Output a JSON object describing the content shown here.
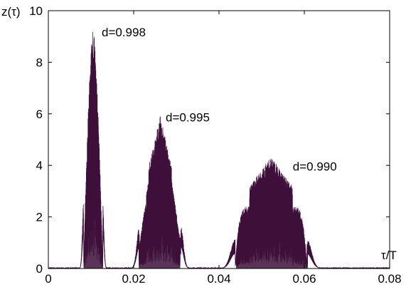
{
  "chart_data": {
    "type": "line",
    "title": "",
    "xlabel": "τ/T",
    "ylabel": "z(τ)",
    "xlim": [
      0,
      0.08
    ],
    "ylim": [
      0,
      10
    ],
    "xticks": [
      0,
      0.02,
      0.04,
      0.06,
      0.08
    ],
    "xtick_labels": [
      "0",
      "0.02",
      "0.04",
      "0.06",
      "0.08"
    ],
    "yticks": [
      0,
      2,
      4,
      6,
      8,
      10
    ],
    "ytick_labels": [
      "0",
      "2",
      "4",
      "6",
      "8",
      "10"
    ],
    "grid": false,
    "line_color": "#3d0f3a",
    "annotations": [
      {
        "text": "d=0.998",
        "x": 0.0125,
        "y": 9.0
      },
      {
        "text": "d=0.995",
        "x": 0.0275,
        "y": 5.7
      },
      {
        "text": "d=0.990",
        "x": 0.0573,
        "y": 3.8
      }
    ],
    "series": [
      {
        "peaks": [
          {
            "label": "d=0.998",
            "center": 0.0105,
            "left_edge": 0.0083,
            "right_edge": 0.0128,
            "max": 9.75
          },
          {
            "label": "d=0.995",
            "center": 0.0262,
            "left_edge": 0.0212,
            "right_edge": 0.0309,
            "max": 6.25
          },
          {
            "label": "d=0.990",
            "center": 0.0522,
            "left_edge": 0.044,
            "right_edge": 0.0608,
            "max": 4.35
          }
        ]
      }
    ]
  }
}
